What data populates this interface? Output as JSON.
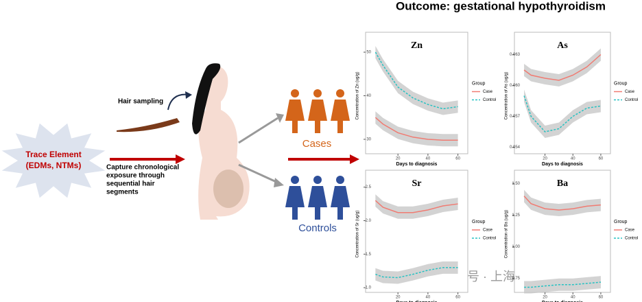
{
  "title": "Outcome: gestational hypothyroidism",
  "source": {
    "label": [
      "Trace Element",
      "(EDMs, NTMs)"
    ]
  },
  "steps": {
    "hair_sampling": "Hair sampling",
    "capture": [
      "Capture chronological",
      "exposure through",
      "sequential hair",
      "segments"
    ]
  },
  "groups": {
    "cases": "Cases",
    "controls": "Controls"
  },
  "watermark": "公众号 · 上海凯来谱",
  "chart_data": [
    {
      "type": "line",
      "title": "Zn",
      "x_label": "Days to diagnosis",
      "y_label": "Concentration of Zn (ug/g)",
      "legend_title": "Group",
      "x": [
        5,
        10,
        20,
        30,
        40,
        50,
        60
      ],
      "xlim": [
        3,
        62
      ],
      "xticks": [
        20,
        40,
        60
      ],
      "ylim": [
        27,
        53
      ],
      "yticks": [
        30,
        40,
        50
      ],
      "series": [
        {
          "name": "Case",
          "color": "#f07b72",
          "values": [
            35,
            33.5,
            31.5,
            30.5,
            30,
            29.8,
            29.8
          ]
        },
        {
          "name": "Control",
          "color": "#26c2c2",
          "dashed": true,
          "values": [
            50,
            47,
            42,
            39.5,
            38,
            37,
            37.5
          ]
        }
      ]
    },
    {
      "type": "line",
      "title": "As",
      "x_label": "Days to diagnosis",
      "y_label": "Concentration of As (ug/g)",
      "legend_title": "Group",
      "x": [
        5,
        10,
        20,
        30,
        40,
        50,
        60
      ],
      "xlim": [
        3,
        62
      ],
      "xticks": [
        20,
        40,
        60
      ],
      "ylim": [
        0.0535,
        0.0645
      ],
      "yticks": [
        0.054,
        0.057,
        {
          "value": 0.06,
          "label": "0.060"
        },
        0.063
      ],
      "series": [
        {
          "name": "Case",
          "color": "#f07b72",
          "values": [
            0.0615,
            0.061,
            0.0607,
            0.0605,
            0.061,
            0.0618,
            0.063
          ]
        },
        {
          "name": "Control",
          "color": "#26c2c2",
          "dashed": true,
          "values": [
            0.059,
            0.057,
            0.0555,
            0.0558,
            0.057,
            0.0578,
            0.058
          ]
        }
      ]
    },
    {
      "type": "line",
      "title": "Sr",
      "x_label": "Days to diagnosis",
      "y_label": "Concentration of Sr (ug/g)",
      "legend_title": "Group",
      "x": [
        5,
        10,
        20,
        30,
        40,
        50,
        60
      ],
      "xlim": [
        3,
        62
      ],
      "xticks": [
        20,
        40,
        60
      ],
      "ylim": [
        0.95,
        2.65
      ],
      "yticks": [
        {
          "value": 1,
          "label": "1.0"
        },
        1.5,
        {
          "value": 2,
          "label": "2.0"
        },
        2.5
      ],
      "series": [
        {
          "name": "Case",
          "color": "#f07b72",
          "values": [
            2.3,
            2.2,
            2.12,
            2.12,
            2.16,
            2.22,
            2.25
          ]
        },
        {
          "name": "Control",
          "color": "#26c2c2",
          "dashed": true,
          "values": [
            1.2,
            1.16,
            1.15,
            1.2,
            1.26,
            1.3,
            1.3
          ]
        }
      ]
    },
    {
      "type": "line",
      "title": "Ba",
      "x_label": "Days to diagnosis",
      "y_label": "Concentration of Ba (ug/g)",
      "legend_title": "Group",
      "x": [
        5,
        10,
        20,
        30,
        40,
        50,
        60
      ],
      "xlim": [
        3,
        62
      ],
      "xticks": [
        20,
        40,
        60
      ],
      "ylim": [
        0.65,
        1.55
      ],
      "yticks": [
        0.75,
        {
          "value": 1,
          "label": "1.00"
        },
        1.25,
        {
          "value": 1.5,
          "label": "1.50"
        }
      ],
      "series": [
        {
          "name": "Case",
          "color": "#f07b72",
          "values": [
            1.4,
            1.34,
            1.3,
            1.29,
            1.3,
            1.32,
            1.33
          ]
        },
        {
          "name": "Control",
          "color": "#26c2c2",
          "dashed": true,
          "values": [
            0.68,
            0.68,
            0.69,
            0.7,
            0.7,
            0.71,
            0.72
          ]
        }
      ]
    }
  ]
}
